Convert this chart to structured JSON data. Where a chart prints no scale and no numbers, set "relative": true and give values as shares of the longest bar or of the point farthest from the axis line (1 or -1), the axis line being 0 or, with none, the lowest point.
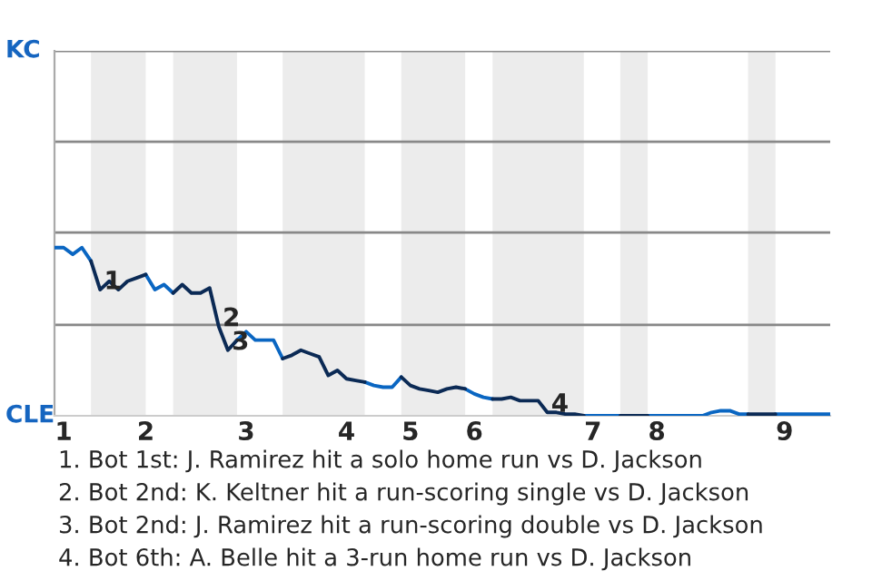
{
  "chart_data": {
    "type": "line",
    "relative": true,
    "categories": [
      null,
      "1",
      null,
      null,
      null,
      null,
      null,
      null,
      null,
      null,
      "2",
      null,
      null,
      null,
      null,
      null,
      null,
      null,
      null,
      null,
      null,
      "3",
      null,
      null,
      null,
      null,
      null,
      null,
      null,
      null,
      null,
      null,
      "4",
      null,
      null,
      null,
      null,
      null,
      null,
      "5",
      null,
      null,
      null,
      null,
      null,
      null,
      "6",
      null,
      null,
      null,
      null,
      null,
      null,
      null,
      null,
      null,
      null,
      null,
      null,
      "7",
      null,
      null,
      null,
      null,
      null,
      null,
      "8",
      null,
      null,
      null,
      null,
      null,
      null,
      null,
      null,
      null,
      null,
      null,
      null,
      null,
      "9",
      null,
      null,
      null,
      null,
      null
    ],
    "line_style": "solid",
    "ref_lines": [
      {
        "axis": "y",
        "value": 0.54,
        "color": "#888888"
      },
      {
        "axis": "y",
        "value": 1.09,
        "color": "#888888"
      },
      {
        "axis": "y",
        "value": 1.63,
        "color": "#888888"
      },
      {
        "axis": "y",
        "value": 2.17,
        "color": "#888888"
      }
    ],
    "series": [
      {
        "color": "#0a66c2",
        "values": [
          1,
          1,
          0.96,
          1,
          0.92,
          null,
          null,
          null,
          null,
          null,
          0.84,
          0.75,
          0.78,
          0.73,
          null,
          null,
          null,
          null,
          null,
          null,
          0.45,
          0.5,
          0.45,
          0.45,
          0.45,
          0.34,
          null,
          null,
          null,
          null,
          null,
          null,
          null,
          null,
          0.2,
          0.18,
          0.17,
          0.17,
          0.23,
          null,
          null,
          null,
          null,
          null,
          null,
          0.16,
          0.13,
          0.11,
          0.1,
          null,
          null,
          null,
          null,
          null,
          null,
          null,
          null,
          null,
          0,
          0,
          0,
          0,
          0,
          null,
          null,
          0,
          0,
          0,
          0,
          0,
          0,
          0,
          0.02,
          0.03,
          0.03,
          0.01,
          0.01,
          null,
          null,
          0.01,
          0.01,
          0.01,
          0.01,
          0.01,
          0.01,
          0.01
        ]
      },
      {
        "color": "#0b2a55",
        "values": [
          null,
          null,
          null,
          null,
          0.92,
          0.75,
          0.8,
          0.75,
          0.8,
          0.82,
          0.84,
          null,
          null,
          0.73,
          0.78,
          0.73,
          0.73,
          0.76,
          0.53,
          0.39,
          0.45,
          null,
          null,
          null,
          null,
          0.34,
          0.36,
          0.39,
          0.37,
          0.35,
          0.24,
          0.27,
          0.22,
          0.21,
          0.2,
          null,
          null,
          null,
          0.23,
          0.18,
          0.16,
          0.15,
          0.14,
          0.16,
          0.17,
          0.16,
          null,
          null,
          0.1,
          0.1,
          0.11,
          0.09,
          0.09,
          0.09,
          0.02,
          0.02,
          0.01,
          0.01,
          0,
          null,
          null,
          null,
          0,
          0,
          0,
          0,
          null,
          null,
          null,
          null,
          null,
          null,
          null,
          null,
          null,
          null,
          0.01,
          0.01,
          0.01,
          0.01,
          null,
          null,
          null,
          null,
          null,
          null
        ]
      }
    ],
    "annotations": [
      {
        "text": "1",
        "y": 0.75
      },
      {
        "text": "2",
        "y": 0.53
      },
      {
        "text": "3",
        "y": 0.39
      },
      {
        "text": "4",
        "y": 0.02
      },
      "KC",
      "CLE",
      "1. Bot 1st: J. Ramirez hit a solo home run vs D. Jackson",
      "2. Bot 2nd: K. Keltner hit a run-scoring single vs D. Jackson",
      "3. Bot 2nd: J. Ramirez hit a run-scoring double vs D. Jackson",
      "4. Bot 6th: A. Belle hit a 3-run home run vs D. Jackson"
    ]
  }
}
